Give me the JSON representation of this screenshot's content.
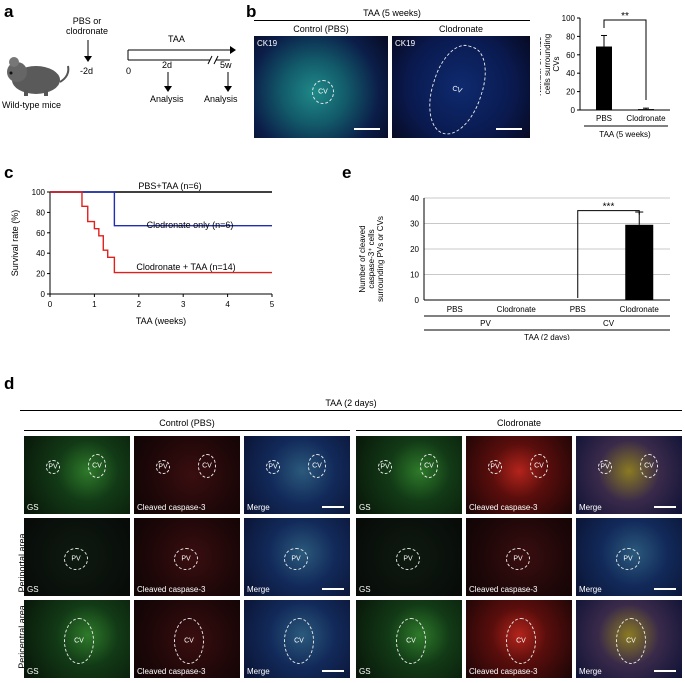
{
  "panel_a": {
    "label": "a",
    "mouse_caption": "Wild-type mice",
    "treatment_label": "PBS or\nclodronate",
    "treatment_time": "-2d",
    "taa_label": "TAA",
    "time_zero": "0",
    "time_2d": "2d",
    "time_5w": "5w",
    "analysis_1": "Analysis",
    "analysis_2": "Analysis"
  },
  "panel_b": {
    "label": "b",
    "header": "TAA (5 weeks)",
    "col_control": "Control (PBS)",
    "col_clodronate": "Clodronate",
    "stain_1": "CK19",
    "stain_2": "CK19",
    "vessel_1": "CV",
    "vessel_2": "CV"
  },
  "panel_c": {
    "label": "c"
  },
  "panel_d": {
    "label": "d",
    "header": "TAA (2 days)",
    "group_control": "Control (PBS)",
    "group_clodronate": "Clodronate",
    "row_periportal": "Periportal area",
    "row_pericentral": "Pericentral area",
    "channel_gs": "GS",
    "channel_caspase": "Cleaved caspase-3",
    "channel_merge": "Merge",
    "cv": "CV",
    "pv": "PV"
  },
  "panel_e": {
    "label": "e"
  },
  "chart_data": [
    {
      "id": "b-bar",
      "type": "bar",
      "ylabel": "Number of CK19⁺ cells surrounding CVs",
      "categories": [
        "PBS",
        "Clodronate"
      ],
      "values": [
        69,
        1
      ],
      "errors": [
        12,
        1
      ],
      "ylim": [
        0,
        100
      ],
      "yticks": [
        0,
        20,
        40,
        60,
        80,
        100
      ],
      "xgroup": "TAA (5 weeks)",
      "significance": "**",
      "bar_color": "#000000"
    },
    {
      "id": "c-survival",
      "type": "line",
      "xlabel": "TAA (weeks)",
      "ylabel": "Survival rate (%)",
      "xlim": [
        0,
        5
      ],
      "ylim": [
        0,
        100
      ],
      "xticks": [
        0,
        1,
        2,
        3,
        4,
        5
      ],
      "yticks": [
        0,
        20,
        40,
        60,
        80,
        100
      ],
      "series": [
        {
          "name": "PBS+TAA (n=6)",
          "color": "#000000",
          "x": [
            0,
            5
          ],
          "y": [
            100,
            100
          ]
        },
        {
          "name": "Clodronate only (n=6)",
          "color": "#1f2fb0",
          "x": [
            0,
            1.45,
            1.45,
            5
          ],
          "y": [
            100,
            100,
            67,
            67
          ]
        },
        {
          "name": "Clodronate + TAA (n=14)",
          "color": "#e0201e",
          "x": [
            0,
            0.72,
            0.72,
            0.85,
            0.85,
            1.0,
            1.0,
            1.1,
            1.1,
            1.2,
            1.2,
            1.3,
            1.3,
            1.45,
            1.45,
            5
          ],
          "y": [
            100,
            100,
            86,
            86,
            71,
            71,
            64,
            64,
            57,
            57,
            43,
            43,
            36,
            36,
            21,
            21
          ]
        }
      ]
    },
    {
      "id": "e-bar",
      "type": "bar",
      "ylabel": "Number of cleaved caspase-3⁺ cells surrounding PVs or CVs",
      "categories": [
        "PBS",
        "Clodronate",
        "PBS",
        "Clodronate"
      ],
      "groups": [
        "PV",
        "CV"
      ],
      "values": [
        0,
        0,
        0,
        29.5
      ],
      "errors": [
        0,
        0,
        0,
        5
      ],
      "ylim": [
        0,
        40
      ],
      "yticks": [
        0,
        10,
        20,
        30,
        40
      ],
      "xgroup": "TAA (2 days)",
      "significance": "***",
      "bar_color": "#000000"
    }
  ]
}
